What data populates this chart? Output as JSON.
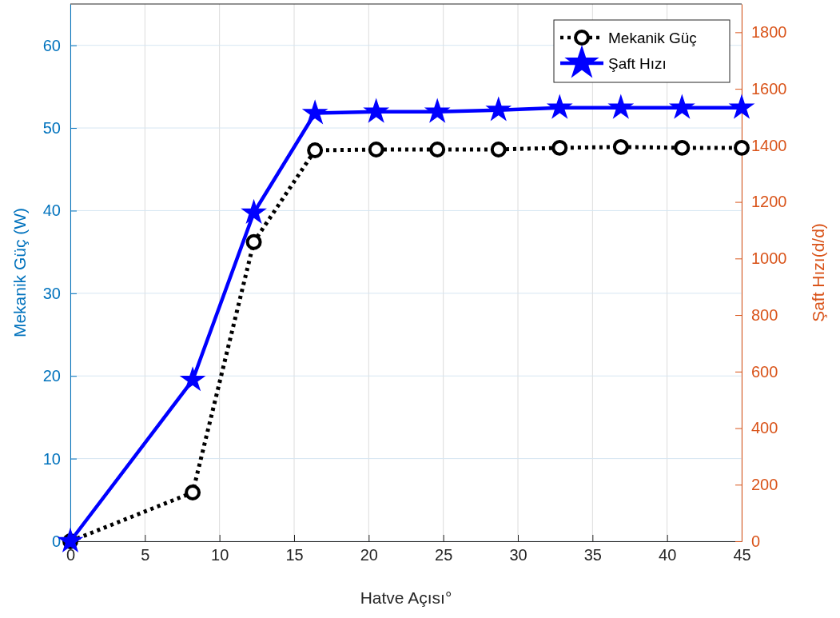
{
  "chart_data": {
    "type": "line",
    "xlabel": "Hatve Açısı°",
    "ylabel": "Mekanik Güç (W)",
    "y2label": "Şaft Hızı(d/d)",
    "x": [
      0,
      8.2,
      12.3,
      16.4,
      20.5,
      24.6,
      28.7,
      32.8,
      36.9,
      41,
      45
    ],
    "xlim": [
      0,
      45
    ],
    "xticks": [
      0,
      5,
      10,
      15,
      20,
      25,
      30,
      35,
      40,
      45
    ],
    "ylim": [
      0,
      65
    ],
    "yticks": [
      0,
      10,
      20,
      30,
      40,
      50,
      60
    ],
    "y2lim": [
      0,
      1900
    ],
    "y2ticks": [
      0,
      200,
      400,
      600,
      800,
      1000,
      1200,
      1400,
      1600,
      1800
    ],
    "grid": true,
    "legend": "top right",
    "series": [
      {
        "name": "Mekanik Güç",
        "color": "#000000",
        "marker": "circle",
        "line_style": "dotted",
        "values": [
          0,
          5.9,
          36.2,
          47.3,
          47.4,
          47.4,
          47.4,
          47.6,
          47.7,
          47.6,
          47.6
        ]
      },
      {
        "name": "Şaft Hızı",
        "color": "#0000ff",
        "marker": "star",
        "line_style": "solid",
        "axis": "y2",
        "values": [
          0,
          570,
          1162,
          1514,
          1519,
          1519,
          1525,
          1533,
          1533,
          1533,
          1533
        ]
      }
    ]
  }
}
